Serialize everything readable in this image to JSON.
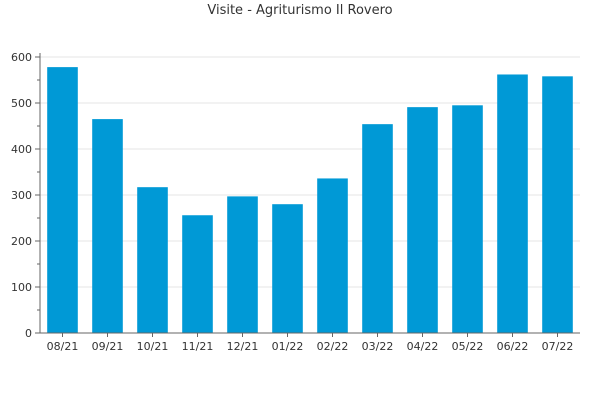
{
  "chart_data": {
    "type": "bar",
    "title": "Visite - Agriturismo Il Rovero",
    "xlabel": "",
    "ylabel": "",
    "categories": [
      "08/21",
      "09/21",
      "10/21",
      "11/21",
      "12/21",
      "01/22",
      "02/22",
      "03/22",
      "04/22",
      "05/22",
      "06/22",
      "07/22"
    ],
    "values": [
      578,
      465,
      317,
      256,
      297,
      280,
      336,
      454,
      491,
      495,
      562,
      558
    ],
    "ylim": [
      0,
      600
    ],
    "yticks": [
      0,
      100,
      200,
      300,
      400,
      500,
      600
    ],
    "grid": true,
    "bar_color": "#0099d6"
  }
}
